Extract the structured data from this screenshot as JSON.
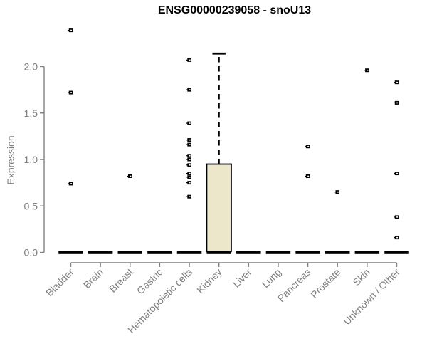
{
  "chart_data": {
    "type": "boxplot",
    "title": "ENSG00000239058 - snoU13",
    "ylabel": "Expression",
    "xlabel": "",
    "ylim": [
      0.0,
      2.4
    ],
    "yticks": [
      0.0,
      0.5,
      1.0,
      1.5,
      2.0
    ],
    "grid": "off",
    "legend": "none",
    "box_fill_color": "#ece7cb",
    "box_line_color": "#000000",
    "axis_color": "#7f7f7f",
    "categories": [
      "Bladder",
      "Brain",
      "Breast",
      "Gastric",
      "Hematopoietic cells",
      "Kidney",
      "Liver",
      "Lung",
      "Pancreas",
      "Prostate",
      "Skin",
      "Unknown / Other"
    ],
    "boxes": [
      {
        "category": "Bladder",
        "q1": 0,
        "median": 0,
        "q3": 0,
        "whisker_low": 0,
        "whisker_high": 0,
        "outliers": [
          0.74,
          1.72,
          2.39
        ]
      },
      {
        "category": "Brain",
        "q1": 0,
        "median": 0,
        "q3": 0,
        "whisker_low": 0,
        "whisker_high": 0,
        "outliers": []
      },
      {
        "category": "Breast",
        "q1": 0,
        "median": 0,
        "q3": 0,
        "whisker_low": 0,
        "whisker_high": 0,
        "outliers": [
          0.82
        ]
      },
      {
        "category": "Gastric",
        "q1": 0,
        "median": 0,
        "q3": 0,
        "whisker_low": 0,
        "whisker_high": 0,
        "outliers": []
      },
      {
        "category": "Hematopoietic cells",
        "q1": 0,
        "median": 0,
        "q3": 0,
        "whisker_low": 0,
        "whisker_high": 0,
        "outliers": [
          0.6,
          0.75,
          0.81,
          0.85,
          0.94,
          1.0,
          1.04,
          1.16,
          1.21,
          1.39,
          1.75,
          2.07
        ]
      },
      {
        "category": "Kidney",
        "q1": 0.01,
        "median": 0,
        "q3": 0.95,
        "whisker_low": 0,
        "whisker_high": 2.14,
        "outliers": []
      },
      {
        "category": "Liver",
        "q1": 0,
        "median": 0,
        "q3": 0,
        "whisker_low": 0,
        "whisker_high": 0,
        "outliers": []
      },
      {
        "category": "Lung",
        "q1": 0,
        "median": 0,
        "q3": 0,
        "whisker_low": 0,
        "whisker_high": 0,
        "outliers": []
      },
      {
        "category": "Pancreas",
        "q1": 0,
        "median": 0,
        "q3": 0,
        "whisker_low": 0,
        "whisker_high": 0,
        "outliers": [
          0.82,
          1.14
        ]
      },
      {
        "category": "Prostate",
        "q1": 0,
        "median": 0,
        "q3": 0,
        "whisker_low": 0,
        "whisker_high": 0,
        "outliers": [
          0.65
        ]
      },
      {
        "category": "Skin",
        "q1": 0,
        "median": 0,
        "q3": 0,
        "whisker_low": 0,
        "whisker_high": 0,
        "outliers": [
          1.96
        ]
      },
      {
        "category": "Unknown / Other",
        "q1": 0,
        "median": 0,
        "q3": 0,
        "whisker_low": 0,
        "whisker_high": 0,
        "outliers": [
          0.16,
          0.38,
          0.85,
          1.61,
          1.83
        ]
      }
    ]
  }
}
